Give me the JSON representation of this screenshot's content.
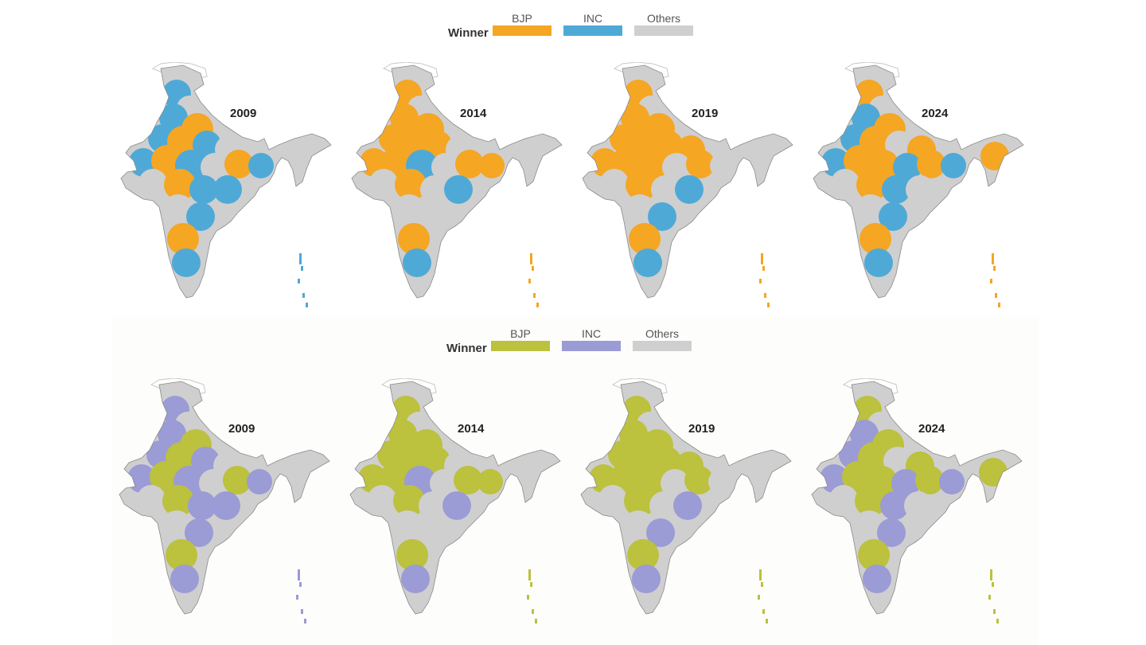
{
  "legend_title": "Winner",
  "parties": [
    "BJP",
    "INC",
    "Others"
  ],
  "palettes": {
    "top": {
      "BJP": "#f5a623",
      "INC": "#4fa9d6",
      "Others": "#cfcfcf"
    },
    "bottom": {
      "BJP": "#bcc13e",
      "INC": "#9b9bd6",
      "Others": "#cfcfcf"
    }
  },
  "years": [
    "2009",
    "2014",
    "2019",
    "2024"
  ],
  "dominant_winner": {
    "2009": "INC",
    "2014": "BJP",
    "2019": "BJP",
    "2024": "BJP"
  },
  "region_winners": {
    "2009": [
      "INC",
      "Others",
      "INC",
      "BJP",
      "INC",
      "BJP",
      "INC",
      "Others",
      "INC",
      "BJP",
      "INC",
      "Others",
      "BJP",
      "INC",
      "Others",
      "BJP",
      "INC",
      "INC",
      "Others",
      "INC",
      "BJP",
      "INC",
      "Others"
    ],
    "2014": [
      "BJP",
      "Others",
      "BJP",
      "BJP",
      "BJP",
      "BJP",
      "BJP",
      "Others",
      "BJP",
      "BJP",
      "INC",
      "Others",
      "BJP",
      "BJP",
      "Others",
      "BJP",
      "Others",
      "INC",
      "Others",
      "Others",
      "BJP",
      "INC",
      "Others"
    ],
    "2019": [
      "BJP",
      "Others",
      "BJP",
      "BJP",
      "BJP",
      "BJP",
      "BJP",
      "BJP",
      "BJP",
      "BJP",
      "BJP",
      "Others",
      "BJP",
      "Others",
      "Others",
      "BJP",
      "Others",
      "INC",
      "Others",
      "INC",
      "BJP",
      "INC",
      "Others"
    ],
    "2024": [
      "BJP",
      "Others",
      "INC",
      "BJP",
      "INC",
      "BJP",
      "Others",
      "BJP",
      "INC",
      "BJP",
      "BJP",
      "INC",
      "BJP",
      "INC",
      "Others",
      "BJP",
      "INC",
      "Others",
      "Others",
      "INC",
      "BJP",
      "INC",
      "BJP"
    ]
  }
}
